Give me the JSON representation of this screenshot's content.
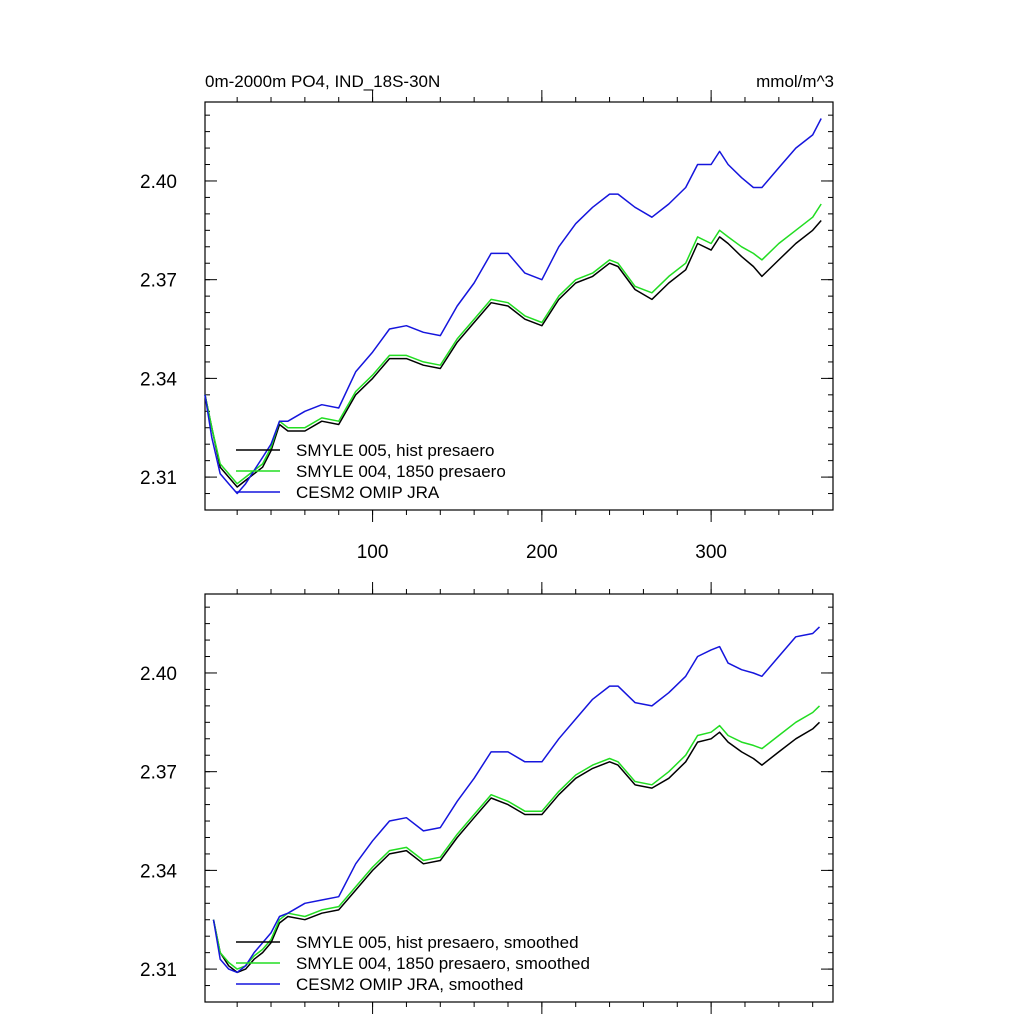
{
  "chart_data": [
    {
      "type": "line",
      "title": "0m-2000m PO4, IND_18S-30N",
      "units": "mmol/m^3",
      "xlim": [
        1,
        372
      ],
      "ylim": [
        2.3,
        2.424
      ],
      "yticks": [
        2.31,
        2.34,
        2.37,
        2.4
      ],
      "ytick_labels": [
        "2.31",
        "2.34",
        "2.37",
        "2.40"
      ],
      "xticks": [
        100,
        200,
        300
      ],
      "xtick_labels": [
        "100",
        "200",
        "300"
      ],
      "grid": false,
      "legend_position": "bottom-left",
      "series": [
        {
          "name": "SMYLE 005, hist presaero",
          "color": "#000000",
          "x": [
            1,
            5,
            10,
            15,
            20,
            25,
            30,
            35,
            40,
            45,
            50,
            60,
            70,
            80,
            90,
            100,
            110,
            120,
            130,
            140,
            150,
            160,
            170,
            180,
            190,
            200,
            210,
            220,
            230,
            240,
            245,
            255,
            265,
            275,
            285,
            292,
            300,
            305,
            310,
            318,
            325,
            330,
            340,
            350,
            360,
            365
          ],
          "y": [
            2.335,
            2.325,
            2.313,
            2.31,
            2.307,
            2.309,
            2.311,
            2.313,
            2.318,
            2.326,
            2.324,
            2.324,
            2.327,
            2.326,
            2.335,
            2.34,
            2.346,
            2.346,
            2.344,
            2.343,
            2.351,
            2.357,
            2.363,
            2.362,
            2.358,
            2.356,
            2.364,
            2.369,
            2.371,
            2.375,
            2.374,
            2.367,
            2.364,
            2.369,
            2.373,
            2.381,
            2.379,
            2.383,
            2.381,
            2.377,
            2.374,
            2.371,
            2.376,
            2.381,
            2.385,
            2.388
          ]
        },
        {
          "name": "SMYLE 004, 1850 presaero",
          "color": "#22dd22",
          "x": [
            1,
            5,
            10,
            15,
            20,
            25,
            30,
            35,
            40,
            45,
            50,
            60,
            70,
            80,
            90,
            100,
            110,
            120,
            130,
            140,
            150,
            160,
            170,
            180,
            190,
            200,
            210,
            220,
            230,
            240,
            245,
            255,
            265,
            275,
            285,
            292,
            300,
            305,
            310,
            318,
            325,
            330,
            340,
            350,
            360,
            365
          ],
          "y": [
            2.335,
            2.325,
            2.314,
            2.311,
            2.308,
            2.31,
            2.312,
            2.314,
            2.319,
            2.327,
            2.325,
            2.325,
            2.328,
            2.327,
            2.336,
            2.341,
            2.347,
            2.347,
            2.345,
            2.344,
            2.352,
            2.358,
            2.364,
            2.363,
            2.359,
            2.357,
            2.365,
            2.37,
            2.372,
            2.376,
            2.375,
            2.368,
            2.366,
            2.371,
            2.375,
            2.383,
            2.381,
            2.385,
            2.383,
            2.38,
            2.378,
            2.376,
            2.381,
            2.385,
            2.389,
            2.393
          ]
        },
        {
          "name": "CESM2 OMIP JRA",
          "color": "#1515dd",
          "x": [
            1,
            5,
            10,
            15,
            20,
            25,
            30,
            35,
            40,
            45,
            50,
            60,
            70,
            80,
            90,
            100,
            110,
            120,
            130,
            140,
            150,
            160,
            170,
            180,
            190,
            200,
            210,
            220,
            230,
            240,
            245,
            255,
            265,
            275,
            285,
            292,
            300,
            305,
            310,
            318,
            325,
            330,
            340,
            350,
            360,
            365
          ],
          "y": [
            2.335,
            2.322,
            2.311,
            2.308,
            2.305,
            2.308,
            2.312,
            2.316,
            2.32,
            2.327,
            2.327,
            2.33,
            2.332,
            2.331,
            2.342,
            2.348,
            2.355,
            2.356,
            2.354,
            2.353,
            2.362,
            2.369,
            2.378,
            2.378,
            2.372,
            2.37,
            2.38,
            2.387,
            2.392,
            2.396,
            2.396,
            2.392,
            2.389,
            2.393,
            2.398,
            2.405,
            2.405,
            2.409,
            2.405,
            2.401,
            2.398,
            2.398,
            2.404,
            2.41,
            2.414,
            2.419
          ]
        }
      ]
    },
    {
      "type": "line",
      "title": "",
      "units": "",
      "xlim": [
        1,
        372
      ],
      "ylim": [
        2.3,
        2.424
      ],
      "yticks": [
        2.31,
        2.34,
        2.37,
        2.4
      ],
      "ytick_labels": [
        "2.31",
        "2.34",
        "2.37",
        "2.40"
      ],
      "xticks": [
        100,
        200,
        300
      ],
      "xtick_labels": [],
      "grid": false,
      "legend_position": "bottom-left",
      "series": [
        {
          "name": "SMYLE 005, hist presaero, smoothed",
          "color": "#000000",
          "x": [
            6,
            10,
            15,
            20,
            25,
            30,
            35,
            40,
            45,
            50,
            60,
            70,
            80,
            90,
            100,
            110,
            120,
            130,
            140,
            150,
            160,
            170,
            180,
            190,
            200,
            210,
            220,
            230,
            240,
            245,
            255,
            265,
            275,
            285,
            292,
            300,
            305,
            310,
            318,
            325,
            330,
            340,
            350,
            360,
            364
          ],
          "y": [
            2.325,
            2.315,
            2.311,
            2.309,
            2.31,
            2.313,
            2.315,
            2.318,
            2.324,
            2.326,
            2.325,
            2.327,
            2.328,
            2.334,
            2.34,
            2.345,
            2.346,
            2.342,
            2.343,
            2.35,
            2.356,
            2.362,
            2.36,
            2.357,
            2.357,
            2.363,
            2.368,
            2.371,
            2.373,
            2.372,
            2.366,
            2.365,
            2.368,
            2.373,
            2.379,
            2.38,
            2.382,
            2.379,
            2.376,
            2.374,
            2.372,
            2.376,
            2.38,
            2.383,
            2.385
          ]
        },
        {
          "name": "SMYLE 004, 1850 presaero, smoothed",
          "color": "#22dd22",
          "x": [
            6,
            10,
            15,
            20,
            25,
            30,
            35,
            40,
            45,
            50,
            60,
            70,
            80,
            90,
            100,
            110,
            120,
            130,
            140,
            150,
            160,
            170,
            180,
            190,
            200,
            210,
            220,
            230,
            240,
            245,
            255,
            265,
            275,
            285,
            292,
            300,
            305,
            310,
            318,
            325,
            330,
            340,
            350,
            360,
            364
          ],
          "y": [
            2.325,
            2.315,
            2.312,
            2.31,
            2.311,
            2.314,
            2.316,
            2.319,
            2.325,
            2.327,
            2.326,
            2.328,
            2.329,
            2.335,
            2.341,
            2.346,
            2.347,
            2.343,
            2.344,
            2.351,
            2.357,
            2.363,
            2.361,
            2.358,
            2.358,
            2.364,
            2.369,
            2.372,
            2.374,
            2.373,
            2.367,
            2.366,
            2.37,
            2.375,
            2.381,
            2.382,
            2.384,
            2.381,
            2.379,
            2.378,
            2.377,
            2.381,
            2.385,
            2.388,
            2.39
          ]
        },
        {
          "name": "CESM2 OMIP JRA, smoothed",
          "color": "#1515dd",
          "x": [
            6,
            10,
            15,
            20,
            25,
            30,
            35,
            40,
            45,
            50,
            60,
            70,
            80,
            90,
            100,
            110,
            120,
            130,
            140,
            150,
            160,
            170,
            180,
            190,
            200,
            210,
            220,
            230,
            240,
            245,
            255,
            265,
            275,
            285,
            292,
            300,
            305,
            310,
            318,
            325,
            330,
            340,
            350,
            360,
            364
          ],
          "y": [
            2.325,
            2.313,
            2.31,
            2.309,
            2.311,
            2.315,
            2.318,
            2.321,
            2.326,
            2.327,
            2.33,
            2.331,
            2.332,
            2.342,
            2.349,
            2.355,
            2.356,
            2.352,
            2.353,
            2.361,
            2.368,
            2.376,
            2.376,
            2.373,
            2.373,
            2.38,
            2.386,
            2.392,
            2.396,
            2.396,
            2.391,
            2.39,
            2.394,
            2.399,
            2.405,
            2.407,
            2.408,
            2.403,
            2.401,
            2.4,
            2.399,
            2.405,
            2.411,
            2.412,
            2.414
          ]
        }
      ]
    }
  ]
}
